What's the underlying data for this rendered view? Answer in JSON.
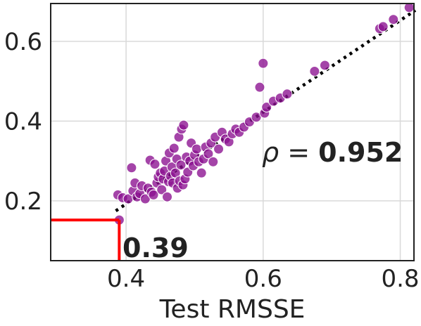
{
  "chart_data": {
    "type": "scatter",
    "title": "",
    "xlabel": "Test RMSSE",
    "ylabel": "",
    "xlim": [
      0.29,
      0.82
    ],
    "ylim": [
      0.05,
      0.695
    ],
    "xticks": [
      0.4,
      0.6,
      0.8
    ],
    "yticks": [
      0.2,
      0.4,
      0.6
    ],
    "xtick_labels": [
      "0.4",
      "0.6",
      "0.8"
    ],
    "ytick_labels": [
      "0.2",
      "0.4",
      "0.6"
    ],
    "grid": true,
    "colors": {
      "points": "#8b0f8f",
      "points_edge": "#ffffff",
      "trendline": "#000000",
      "highlight": "#ff0000",
      "grid": "#d9d9d9",
      "frame": "#222222"
    },
    "points": [
      {
        "x": 0.388,
        "y": 0.215
      },
      {
        "x": 0.39,
        "y": 0.152
      },
      {
        "x": 0.395,
        "y": 0.208
      },
      {
        "x": 0.403,
        "y": 0.205
      },
      {
        "x": 0.408,
        "y": 0.283
      },
      {
        "x": 0.41,
        "y": 0.225
      },
      {
        "x": 0.413,
        "y": 0.245
      },
      {
        "x": 0.416,
        "y": 0.21
      },
      {
        "x": 0.42,
        "y": 0.218
      },
      {
        "x": 0.423,
        "y": 0.238
      },
      {
        "x": 0.428,
        "y": 0.205
      },
      {
        "x": 0.432,
        "y": 0.232
      },
      {
        "x": 0.435,
        "y": 0.302
      },
      {
        "x": 0.437,
        "y": 0.222
      },
      {
        "x": 0.44,
        "y": 0.215
      },
      {
        "x": 0.442,
        "y": 0.292
      },
      {
        "x": 0.445,
        "y": 0.245
      },
      {
        "x": 0.447,
        "y": 0.26
      },
      {
        "x": 0.45,
        "y": 0.27
      },
      {
        "x": 0.452,
        "y": 0.228
      },
      {
        "x": 0.454,
        "y": 0.255
      },
      {
        "x": 0.456,
        "y": 0.275
      },
      {
        "x": 0.458,
        "y": 0.3
      },
      {
        "x": 0.46,
        "y": 0.21
      },
      {
        "x": 0.462,
        "y": 0.248
      },
      {
        "x": 0.463,
        "y": 0.32
      },
      {
        "x": 0.465,
        "y": 0.262
      },
      {
        "x": 0.467,
        "y": 0.285
      },
      {
        "x": 0.468,
        "y": 0.245
      },
      {
        "x": 0.47,
        "y": 0.332
      },
      {
        "x": 0.472,
        "y": 0.27
      },
      {
        "x": 0.474,
        "y": 0.305
      },
      {
        "x": 0.475,
        "y": 0.232
      },
      {
        "x": 0.477,
        "y": 0.36
      },
      {
        "x": 0.478,
        "y": 0.25
      },
      {
        "x": 0.48,
        "y": 0.29
      },
      {
        "x": 0.481,
        "y": 0.38
      },
      {
        "x": 0.483,
        "y": 0.24
      },
      {
        "x": 0.484,
        "y": 0.39
      },
      {
        "x": 0.486,
        "y": 0.255
      },
      {
        "x": 0.488,
        "y": 0.31
      },
      {
        "x": 0.49,
        "y": 0.272
      },
      {
        "x": 0.493,
        "y": 0.3
      },
      {
        "x": 0.495,
        "y": 0.345
      },
      {
        "x": 0.498,
        "y": 0.288
      },
      {
        "x": 0.5,
        "y": 0.315
      },
      {
        "x": 0.503,
        "y": 0.33
      },
      {
        "x": 0.506,
        "y": 0.298
      },
      {
        "x": 0.51,
        "y": 0.27
      },
      {
        "x": 0.513,
        "y": 0.305
      },
      {
        "x": 0.516,
        "y": 0.335
      },
      {
        "x": 0.52,
        "y": 0.318
      },
      {
        "x": 0.524,
        "y": 0.345
      },
      {
        "x": 0.527,
        "y": 0.298
      },
      {
        "x": 0.53,
        "y": 0.36
      },
      {
        "x": 0.535,
        "y": 0.33
      },
      {
        "x": 0.54,
        "y": 0.372
      },
      {
        "x": 0.545,
        "y": 0.355
      },
      {
        "x": 0.55,
        "y": 0.348
      },
      {
        "x": 0.555,
        "y": 0.368
      },
      {
        "x": 0.56,
        "y": 0.38
      },
      {
        "x": 0.565,
        "y": 0.372
      },
      {
        "x": 0.572,
        "y": 0.385
      },
      {
        "x": 0.58,
        "y": 0.398
      },
      {
        "x": 0.59,
        "y": 0.41
      },
      {
        "x": 0.595,
        "y": 0.485
      },
      {
        "x": 0.6,
        "y": 0.545
      },
      {
        "x": 0.602,
        "y": 0.42
      },
      {
        "x": 0.605,
        "y": 0.435
      },
      {
        "x": 0.615,
        "y": 0.45
      },
      {
        "x": 0.625,
        "y": 0.458
      },
      {
        "x": 0.635,
        "y": 0.468
      },
      {
        "x": 0.675,
        "y": 0.525
      },
      {
        "x": 0.69,
        "y": 0.54
      },
      {
        "x": 0.77,
        "y": 0.632
      },
      {
        "x": 0.775,
        "y": 0.637
      },
      {
        "x": 0.79,
        "y": 0.655
      },
      {
        "x": 0.813,
        "y": 0.685
      }
    ],
    "trendline": {
      "x": [
        0.385,
        0.822
      ],
      "y": [
        0.175,
        0.678
      ],
      "style": "dotted"
    },
    "highlight": {
      "x": 0.39,
      "y": 0.152
    },
    "annotations": {
      "rho_symbol": "ρ",
      "rho_eq": " = ",
      "rho_value": "0.952",
      "threshold_value": "0.39"
    }
  }
}
